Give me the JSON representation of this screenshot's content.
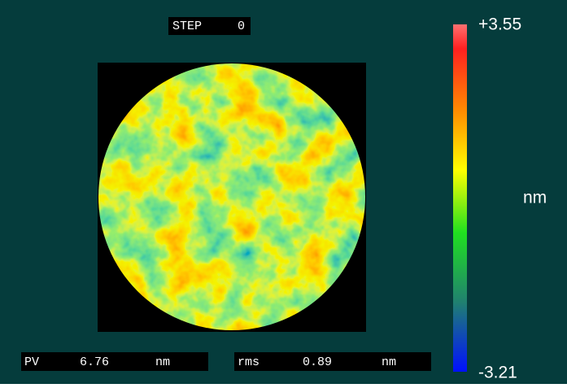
{
  "step": {
    "label": "STEP",
    "value": "0"
  },
  "colorbar": {
    "max": "+3.55",
    "min": "-3.21",
    "unit": "nm"
  },
  "pv": {
    "label": "PV",
    "value": "6.76",
    "unit": "nm"
  },
  "rms": {
    "label": "rms",
    "value": "0.89",
    "unit": "nm"
  }
}
